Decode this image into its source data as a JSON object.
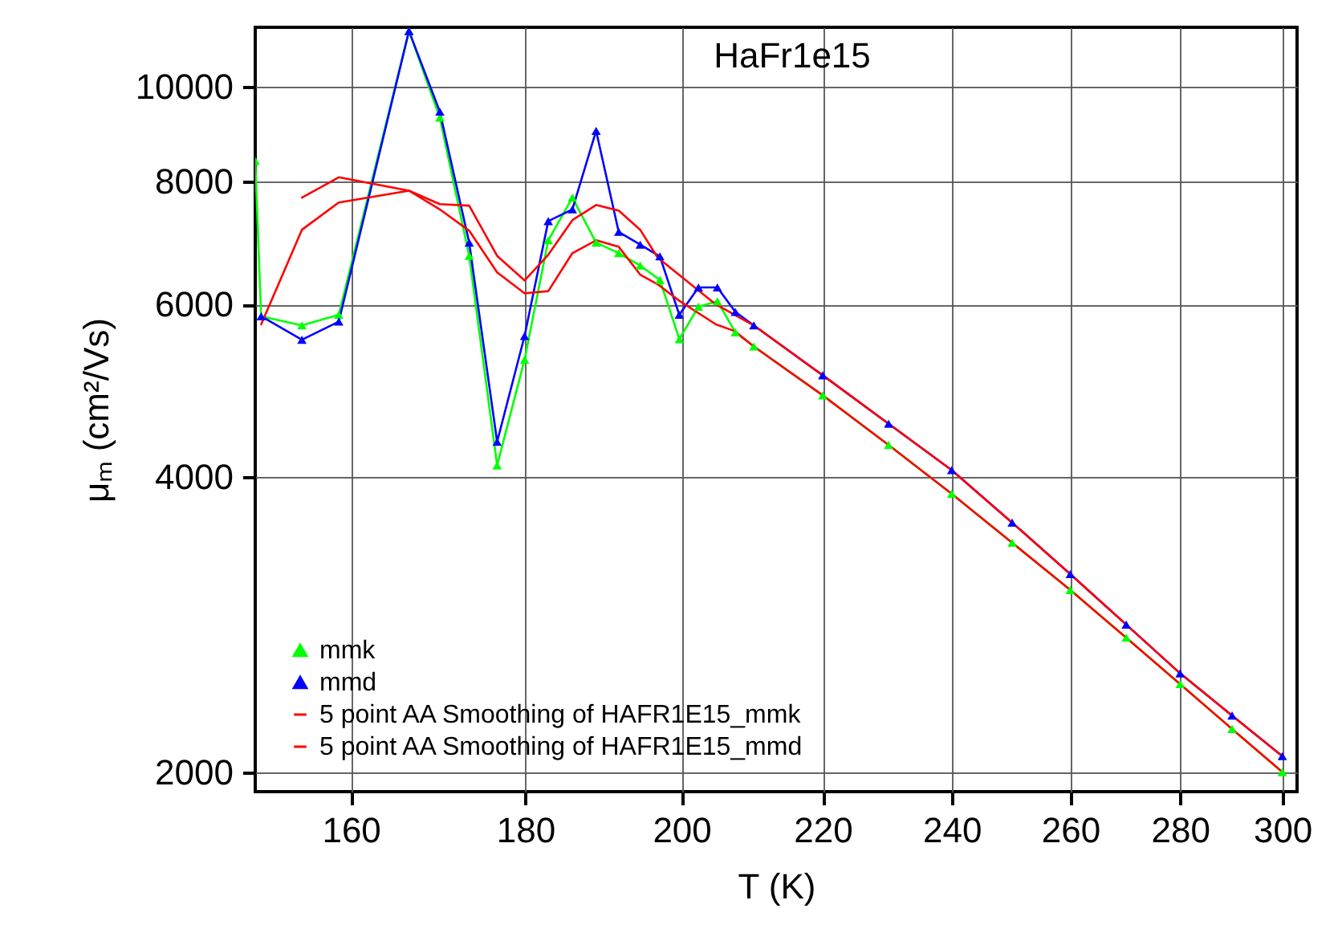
{
  "chart_data": {
    "type": "line",
    "title": "HaFr1e15",
    "xlabel": "T (K)",
    "ylabel": "μₘ (cm²/Vs)",
    "log": "xy",
    "xlim": [
      150,
      303
    ],
    "ylim": [
      1910,
      11500
    ],
    "xticks": [
      160,
      180,
      200,
      220,
      240,
      260,
      280,
      300
    ],
    "yticks": [
      2000,
      4000,
      6000,
      8000,
      10000
    ],
    "grid": true,
    "legend": "bottom left",
    "line_style": "solid",
    "series": [
      {
        "name": "mmk",
        "color": "#00ff00",
        "marker": "triangle",
        "x": [
          150,
          150.6,
          154.8,
          158.7,
          166.4,
          169.9,
          173.3,
          176.6,
          179.9,
          182.8,
          185.8,
          188.8,
          191.7,
          194.5,
          197.1,
          199.7,
          202.3,
          204.9,
          207.4,
          210,
          220,
          230,
          240,
          250,
          260,
          270,
          280,
          290,
          300
        ],
        "values": [
          8400,
          5833,
          5711,
          5855,
          11400,
          9304,
          6723,
          4110,
          5269,
          6973,
          7708,
          6936,
          6766,
          6572,
          6354,
          5528,
          5966,
          6043,
          5618,
          5435,
          4845,
          4311,
          3845,
          3427,
          3067,
          2742,
          2459,
          2213,
          2000
        ]
      },
      {
        "name": "mmd",
        "color": "#0000ff",
        "marker": "triangle",
        "x": [
          150.6,
          154.8,
          158.7,
          166.4,
          169.9,
          173.3,
          176.6,
          179.9,
          182.8,
          185.8,
          188.8,
          191.7,
          194.5,
          197.1,
          199.7,
          202.3,
          204.9,
          207.4,
          210,
          220,
          230,
          240,
          250,
          260,
          270,
          280,
          290,
          300
        ],
        "values": [
          5833,
          5521,
          5761,
          11400,
          9434,
          6936,
          4344,
          5569,
          7295,
          7498,
          9017,
          7113,
          6902,
          6715,
          5855,
          6242,
          6242,
          5893,
          5710,
          5079,
          4532,
          4065,
          3593,
          3184,
          2828,
          2522,
          2284,
          2076
        ]
      },
      {
        "name": "5 point AA Smoothing of HAFR1E15_mmk",
        "color": "#ff0000",
        "marker": "none",
        "x": [
          154.8,
          158.7,
          166.4,
          169.9,
          173.3,
          176.6,
          179.9,
          182.8,
          185.8,
          188.8,
          191.7,
          194.5,
          196.8,
          199.7,
          204.7,
          207.3,
          210,
          220,
          230,
          240,
          250,
          260,
          270,
          280,
          290,
          300
        ],
        "values": [
          7708,
          8085,
          7835,
          7498,
          7132,
          6467,
          6158,
          6188,
          6766,
          6973,
          6868,
          6433,
          6289,
          6050,
          5724,
          5634,
          5435,
          4845,
          4311,
          3845,
          3427,
          3067,
          2742,
          2459,
          2213,
          2000
        ]
      },
      {
        "name": "5 point AA Smoothing of HAFR1E15_mmd",
        "color": "#ff0000",
        "marker": "none",
        "x": [
          150.6,
          154.8,
          158.7,
          166.4,
          169.9,
          173.3,
          176.6,
          179.9,
          182.8,
          185.8,
          188.8,
          191.7,
          194.5,
          196.8,
          204.7,
          210,
          220,
          230,
          240,
          250,
          260,
          270,
          280,
          290,
          300
        ],
        "values": [
          5724,
          7148,
          7621,
          7835,
          7592,
          7564,
          6723,
          6346,
          6740,
          7311,
          7576,
          7478,
          7148,
          6697,
          5998,
          5710,
          5079,
          4532,
          4065,
          3593,
          3184,
          2828,
          2522,
          2284,
          2076
        ]
      }
    ]
  }
}
